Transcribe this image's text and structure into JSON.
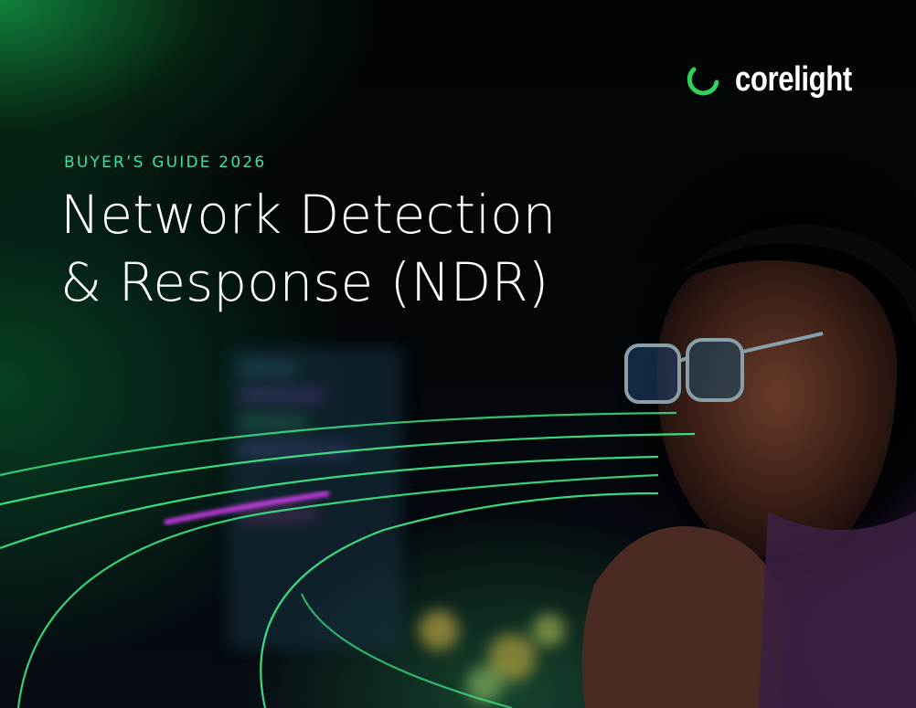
{
  "brand": {
    "name": "corelight",
    "accent": "#2fd35a"
  },
  "cover": {
    "eyebrow": "BUYER’S GUIDE 2026",
    "title_line1": "Network Detection",
    "title_line2": "& Response (NDR)",
    "eyebrow_color": "#3fe0a6"
  },
  "image": {
    "icon": "person-with-glasses-photo"
  }
}
